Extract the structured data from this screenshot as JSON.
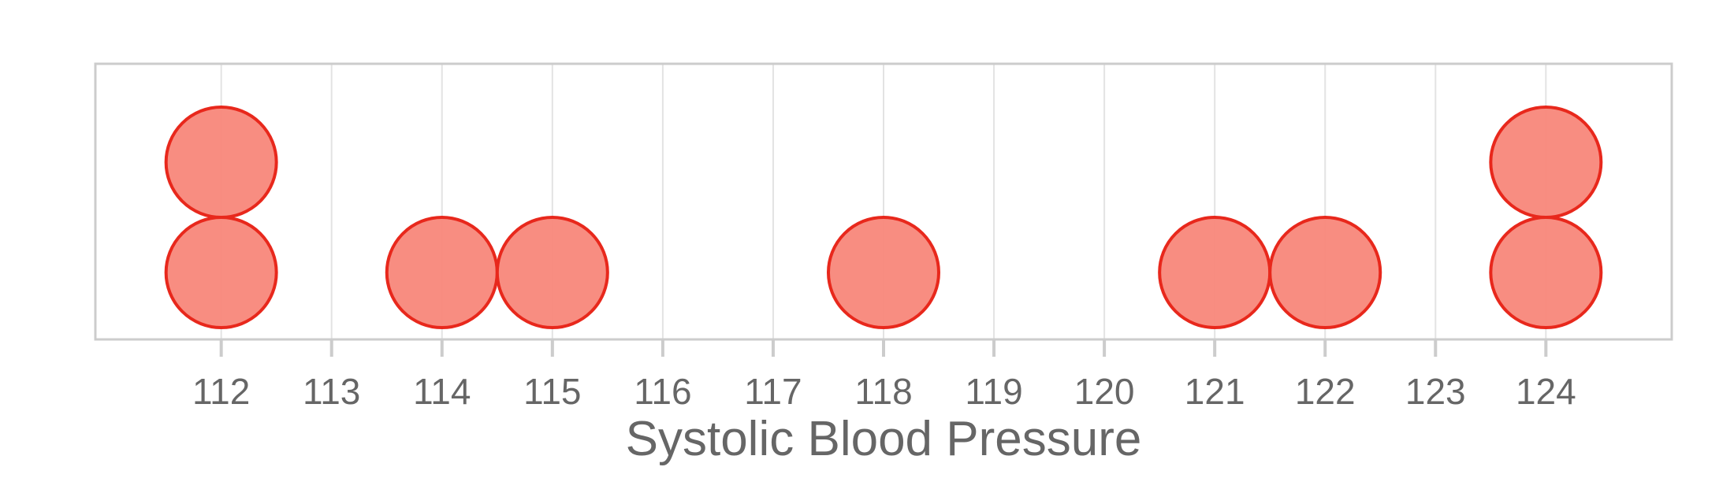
{
  "chart_data": {
    "type": "dot",
    "title": "",
    "xlabel": "Systolic Blood Pressure",
    "ylabel": "",
    "xlim": [
      110.86,
      125.14
    ],
    "x_ticks": [
      112,
      113,
      114,
      115,
      116,
      117,
      118,
      119,
      120,
      121,
      122,
      123,
      124
    ],
    "stack_unit": 1,
    "grid": true,
    "legend": "none",
    "points": [
      {
        "x": 112,
        "stack": 1
      },
      {
        "x": 112,
        "stack": 2
      },
      {
        "x": 114,
        "stack": 1
      },
      {
        "x": 115,
        "stack": 1
      },
      {
        "x": 118,
        "stack": 1
      },
      {
        "x": 121,
        "stack": 1
      },
      {
        "x": 122,
        "stack": 1
      },
      {
        "x": 124,
        "stack": 1
      },
      {
        "x": 124,
        "stack": 2
      }
    ],
    "colors": {
      "dot_fill": "#f8877a",
      "dot_stroke": "#e8281c",
      "grid": "#e3e3e3",
      "frame": "#cccccc",
      "text": "#666666"
    }
  }
}
